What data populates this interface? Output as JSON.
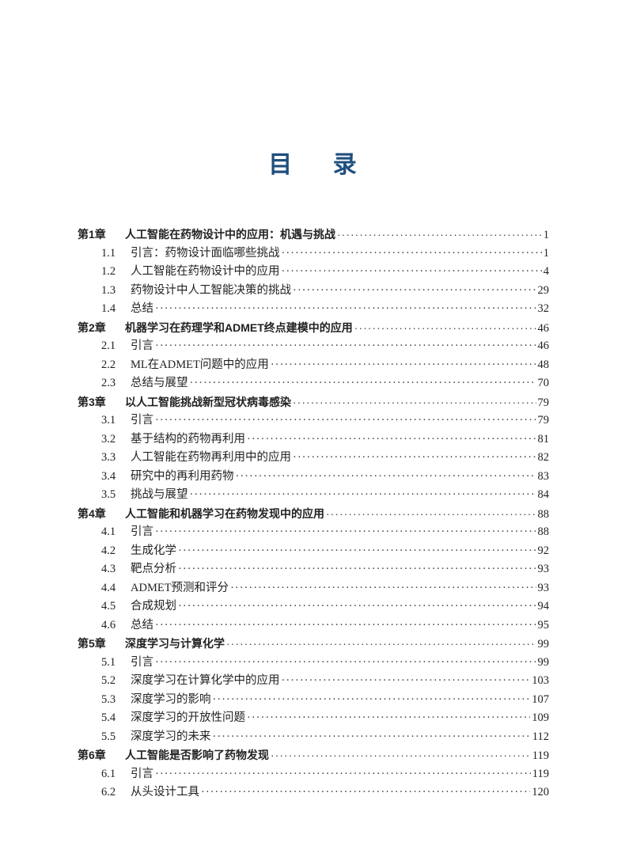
{
  "title": [
    "目",
    "录"
  ],
  "accent_color": "#1f4f7e",
  "toc": [
    {
      "type": "chapter",
      "num": "第1章",
      "label": "人工智能在药物设计中的应用：机遇与挑战",
      "page": "1"
    },
    {
      "type": "section",
      "num": "1.1",
      "label": "引言：药物设计面临哪些挑战",
      "page": "1"
    },
    {
      "type": "section",
      "num": "1.2",
      "label": "人工智能在药物设计中的应用",
      "page": "4"
    },
    {
      "type": "section",
      "num": "1.3",
      "label": "药物设计中人工智能决策的挑战",
      "page": "29"
    },
    {
      "type": "section",
      "num": "1.4",
      "label": "总结",
      "page": "32"
    },
    {
      "type": "chapter",
      "num": "第2章",
      "label": "机器学习在药理学和ADMET终点建模中的应用",
      "page": "46"
    },
    {
      "type": "section",
      "num": "2.1",
      "label": "引言",
      "page": "46"
    },
    {
      "type": "section",
      "num": "2.2",
      "label": "ML在ADMET问题中的应用",
      "page": "48"
    },
    {
      "type": "section",
      "num": "2.3",
      "label": "总结与展望",
      "page": "70"
    },
    {
      "type": "chapter",
      "num": "第3章",
      "label": "以人工智能挑战新型冠状病毒感染",
      "page": "79"
    },
    {
      "type": "section",
      "num": "3.1",
      "label": "引言",
      "page": "79"
    },
    {
      "type": "section",
      "num": "3.2",
      "label": "基于结构的药物再利用",
      "page": "81"
    },
    {
      "type": "section",
      "num": "3.3",
      "label": "人工智能在药物再利用中的应用",
      "page": "82"
    },
    {
      "type": "section",
      "num": "3.4",
      "label": "研究中的再利用药物",
      "page": "83"
    },
    {
      "type": "section",
      "num": "3.5",
      "label": "挑战与展望",
      "page": "84"
    },
    {
      "type": "chapter",
      "num": "第4章",
      "label": "人工智能和机器学习在药物发现中的应用",
      "page": "88"
    },
    {
      "type": "section",
      "num": "4.1",
      "label": "引言",
      "page": "88"
    },
    {
      "type": "section",
      "num": "4.2",
      "label": "生成化学",
      "page": "92"
    },
    {
      "type": "section",
      "num": "4.3",
      "label": "靶点分析",
      "page": "93"
    },
    {
      "type": "section",
      "num": "4.4",
      "label": "ADMET预测和评分",
      "page": "93"
    },
    {
      "type": "section",
      "num": "4.5",
      "label": "合成规划",
      "page": "94"
    },
    {
      "type": "section",
      "num": "4.6",
      "label": "总结",
      "page": "95"
    },
    {
      "type": "chapter",
      "num": "第5章",
      "label": "深度学习与计算化学",
      "page": "99"
    },
    {
      "type": "section",
      "num": "5.1",
      "label": "引言",
      "page": "99"
    },
    {
      "type": "section",
      "num": "5.2",
      "label": "深度学习在计算化学中的应用",
      "page": "103"
    },
    {
      "type": "section",
      "num": "5.3",
      "label": "深度学习的影响",
      "page": "107"
    },
    {
      "type": "section",
      "num": "5.4",
      "label": "深度学习的开放性问题",
      "page": "109"
    },
    {
      "type": "section",
      "num": "5.5",
      "label": "深度学习的未来",
      "page": "112"
    },
    {
      "type": "chapter",
      "num": "第6章",
      "label": "人工智能是否影响了药物发现",
      "page": "119"
    },
    {
      "type": "section",
      "num": "6.1",
      "label": "引言",
      "page": "119"
    },
    {
      "type": "section",
      "num": "6.2",
      "label": "从头设计工具",
      "page": "120"
    }
  ]
}
